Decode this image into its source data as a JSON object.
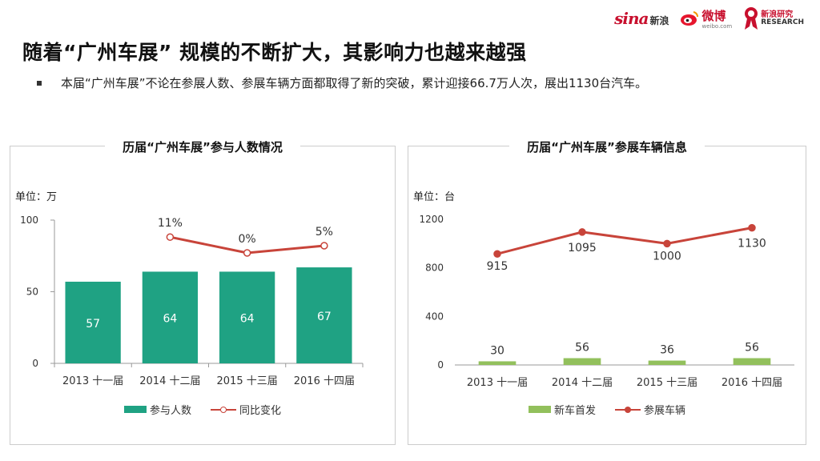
{
  "header": {
    "title": "随着“广州车展” 规模的不断扩大，其影响力也越来越强",
    "bullet": "本届“广州车展”不论在参展人数、参展车辆方面都取得了新的突破，累计迎接66.7万人次，展出1130台汽车。"
  },
  "logos": {
    "sina_text": "sina",
    "sina_cn": "新浪",
    "weibo_text": "微博",
    "weibo_sub": "weibo.com",
    "research_cn": "新浪研究",
    "research_en": "RESEARCH"
  },
  "colors": {
    "teal": "#1fa283",
    "red": "#c8443a",
    "green": "#92c05c"
  },
  "chart_data": [
    {
      "type": "bar+line",
      "title": "历届“广州车展”参与人数情况",
      "unit_label": "单位：万",
      "categories": [
        "2013 十一届",
        "2014 十二届",
        "2015 十三届",
        "2016 十四届"
      ],
      "ylim": [
        0,
        100
      ],
      "yticks": [
        0,
        50,
        100
      ],
      "series": [
        {
          "name": "参与人数",
          "kind": "bar",
          "values": [
            57,
            64,
            64,
            67
          ],
          "labels": [
            "57",
            "64",
            "64",
            "67"
          ]
        },
        {
          "name": "同比变化",
          "kind": "line",
          "values": [
            null,
            11,
            0,
            5
          ],
          "labels": [
            "",
            "11%",
            "0%",
            "5%"
          ]
        }
      ]
    },
    {
      "type": "bar+line",
      "title": "历届“广州车展”参展车辆信息",
      "unit_label": "单位：台",
      "categories": [
        "2013 十一届",
        "2014 十二届",
        "2015 十三届",
        "2016 十四届"
      ],
      "ylim": [
        0,
        1200
      ],
      "yticks": [
        0,
        400,
        800,
        1200
      ],
      "series": [
        {
          "name": "新车首发",
          "kind": "bar",
          "values": [
            30,
            56,
            36,
            56
          ],
          "labels": [
            "30",
            "56",
            "36",
            "56"
          ]
        },
        {
          "name": "参展车辆",
          "kind": "line",
          "values": [
            915,
            1095,
            1000,
            1130
          ],
          "labels": [
            "915",
            "1095",
            "1000",
            "1130"
          ]
        }
      ]
    }
  ]
}
